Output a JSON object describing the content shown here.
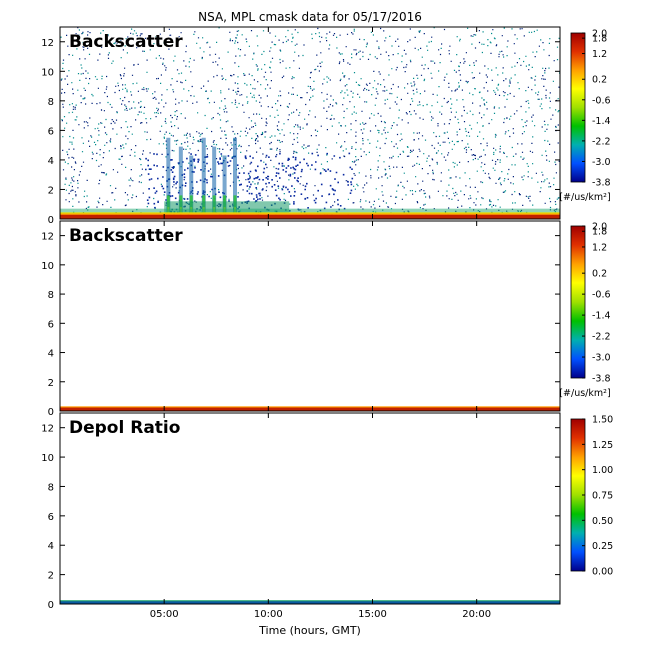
{
  "title": "NSA, MPL cmask data for 05/17/2016",
  "xlabel": "Time (hours, GMT)",
  "chart_data": [
    {
      "type": "heatmap",
      "panel_label": "Backscatter",
      "x_ticks": [
        "05:00",
        "10:00",
        "15:00",
        "20:00"
      ],
      "x_tick_hours": [
        5,
        10,
        15,
        20
      ],
      "xlim": [
        0,
        24
      ],
      "ylim": [
        0,
        13
      ],
      "y_ticks": [
        0,
        2,
        4,
        6,
        8,
        10,
        12
      ],
      "colorbar": {
        "ticks": [
          "2.0",
          "1.8",
          "1.2",
          "0.2",
          "-0.6",
          "-1.4",
          "-2.2",
          "-3.0",
          "-3.8"
        ],
        "unit_label": "[#/us/km²]",
        "range": [
          -3.8,
          2.0
        ]
      },
      "features": {
        "surface_layer_km": [
          0,
          0.3
        ],
        "noise_top_km": 13,
        "dense_region_hours": [
          5,
          11
        ],
        "vertical_streaks_hours": [
          5.2,
          5.8,
          6.3,
          6.9,
          7.4,
          7.9,
          8.4
        ]
      }
    },
    {
      "type": "heatmap",
      "panel_label": "Backscatter",
      "x_ticks": [
        "05:00",
        "10:00",
        "15:00",
        "20:00"
      ],
      "x_tick_hours": [
        5,
        10,
        15,
        20
      ],
      "xlim": [
        0,
        24
      ],
      "ylim": [
        0,
        13
      ],
      "y_ticks": [
        0,
        2,
        4,
        6,
        8,
        10,
        12
      ],
      "colorbar": {
        "ticks": [
          "2.0",
          "1.8",
          "1.2",
          "0.2",
          "-0.6",
          "-1.4",
          "-2.2",
          "-3.0",
          "-3.8"
        ],
        "unit_label": "[#/us/km²]",
        "range": [
          -3.8,
          2.0
        ]
      },
      "features": {
        "surface_layer_km": [
          0,
          0.25
        ]
      }
    },
    {
      "type": "heatmap",
      "panel_label": "Depol Ratio",
      "x_ticks": [
        "05:00",
        "10:00",
        "15:00",
        "20:00"
      ],
      "x_tick_hours": [
        5,
        10,
        15,
        20
      ],
      "xlim": [
        0,
        24
      ],
      "ylim": [
        0,
        13
      ],
      "y_ticks": [
        0,
        2,
        4,
        6,
        8,
        10,
        12
      ],
      "colorbar": {
        "ticks": [
          "1.50",
          "1.25",
          "1.00",
          "0.75",
          "0.50",
          "0.25",
          "0.00"
        ],
        "unit_label": "",
        "range": [
          0,
          1.5
        ]
      },
      "features": {
        "surface_layer_km": [
          0,
          0.2
        ]
      }
    }
  ],
  "colors": {
    "background": "#ffffff",
    "panel_bg": "#ffffff",
    "palette": [
      "#00008b",
      "#0050ff",
      "#00b0b0",
      "#00c000",
      "#a0e000",
      "#ffff00",
      "#ffa000",
      "#e03000",
      "#a00000"
    ]
  }
}
